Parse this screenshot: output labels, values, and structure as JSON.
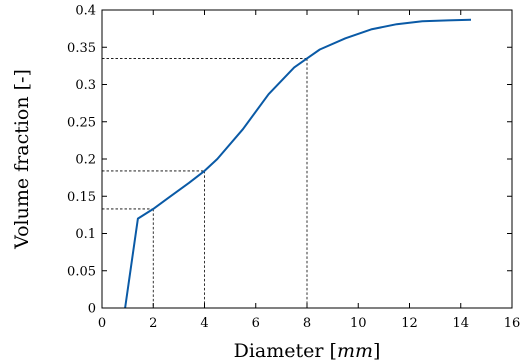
{
  "chart_data": {
    "type": "line",
    "xlabel": "Diameter",
    "xlabel_unit": "mm",
    "ylabel": "Volume fraction [-]",
    "xlim": [
      0,
      16
    ],
    "ylim": [
      0,
      0.4
    ],
    "xticks": [
      0,
      2,
      4,
      6,
      8,
      10,
      12,
      14,
      16
    ],
    "yticks": [
      0,
      0.05,
      0.1,
      0.15,
      0.2,
      0.25,
      0.3,
      0.35,
      0.4
    ],
    "xtick_labels": [
      "0",
      "2",
      "4",
      "6",
      "8",
      "10",
      "12",
      "14",
      "16"
    ],
    "ytick_labels": [
      "0",
      "0.05",
      "0.1",
      "0.15",
      "0.2",
      "0.25",
      "0.3",
      "0.35",
      "0.4"
    ],
    "grid": false,
    "line_color": "#0a5aa6",
    "series": [
      {
        "x": [
          0.9,
          1.4,
          2.0,
          2.6,
          3.4,
          4.0,
          4.5,
          5.5,
          6.5,
          7.5,
          8.0,
          8.5,
          9.5,
          10.5,
          11.5,
          12.5,
          13.5,
          14.4
        ],
        "y": [
          0.0,
          0.12,
          0.133,
          0.148,
          0.168,
          0.184,
          0.2,
          0.24,
          0.287,
          0.323,
          0.335,
          0.347,
          0.362,
          0.374,
          0.381,
          0.385,
          0.386,
          0.387
        ]
      }
    ],
    "reference_lines": [
      {
        "x": 2,
        "y": 0.133
      },
      {
        "x": 4,
        "y": 0.184
      },
      {
        "x": 8,
        "y": 0.335
      }
    ]
  }
}
